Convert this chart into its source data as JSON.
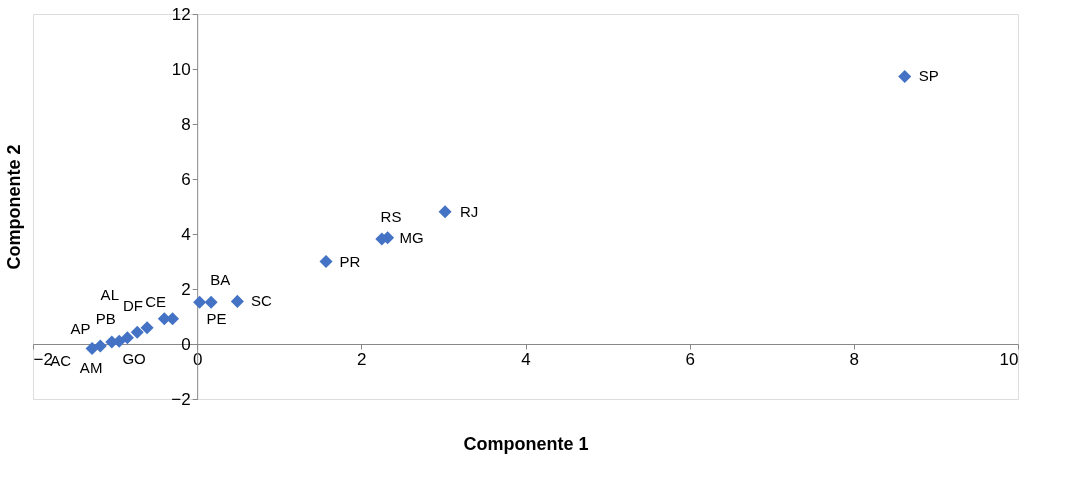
{
  "chart_data": {
    "type": "scatter",
    "xlabel": "Componente 1",
    "ylabel": "Componente 2",
    "xlim": [
      -2,
      10
    ],
    "ylim": [
      -2,
      12
    ],
    "xticks": [
      -2,
      0,
      2,
      4,
      6,
      8,
      10
    ],
    "yticks": [
      -2,
      0,
      2,
      4,
      6,
      8,
      10,
      12
    ],
    "grid": false,
    "marker": "diamond",
    "series": [
      {
        "color": "#4472c4",
        "x": [
          8.62,
          3.02,
          2.32,
          2.25,
          1.57,
          0.49,
          0.17,
          0.03,
          -0.3,
          -0.4,
          -0.61,
          -0.73,
          -0.85,
          -0.95,
          -1.04,
          -1.18,
          -1.28
        ],
        "values": [
          9.73,
          4.81,
          3.86,
          3.82,
          3.0,
          1.55,
          1.52,
          1.52,
          0.92,
          0.92,
          0.59,
          0.43,
          0.23,
          0.1,
          0.07,
          -0.07,
          -0.16
        ]
      }
    ],
    "annotations": [
      {
        "text": "SP",
        "x": 8.62,
        "y": 9.73
      },
      {
        "text": "RJ",
        "x": 3.02,
        "y": 4.81
      },
      {
        "text": "MG",
        "x": 2.32,
        "y": 3.86
      },
      {
        "text": "RS",
        "x": 2.25,
        "y": 3.82
      },
      {
        "text": "PR",
        "x": 1.57,
        "y": 3.0
      },
      {
        "text": "SC",
        "x": 0.49,
        "y": 1.55
      },
      {
        "text": "BA",
        "x": 0.17,
        "y": 1.52
      },
      {
        "text": "PE",
        "x": 0.03,
        "y": 1.52
      },
      {
        "text": "CE",
        "x": -0.3,
        "y": 0.92
      },
      {
        "text": "DF",
        "x": -0.4,
        "y": 0.92
      },
      {
        "text": "GO",
        "x": -0.61,
        "y": 0.59
      },
      {
        "text": "PB",
        "x": -0.73,
        "y": 0.43
      },
      {
        "text": "AL",
        "x": -0.85,
        "y": 0.23
      },
      {
        "text": "AP",
        "x": -1.04,
        "y": 0.07
      },
      {
        "text": "AM",
        "x": -1.18,
        "y": -0.07
      },
      {
        "text": "AC",
        "x": -1.28,
        "y": -0.16
      }
    ]
  }
}
